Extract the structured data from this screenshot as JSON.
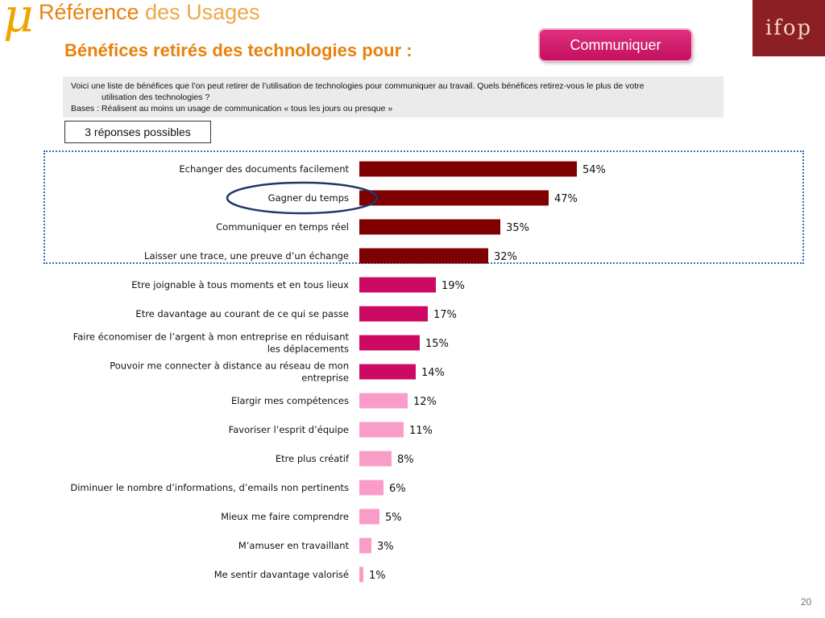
{
  "header": {
    "brand_mu": "μ",
    "brand_bold": "Référence",
    "brand_light": " des Usages",
    "title": "Bénéfices retirés des technologies pour :",
    "topic_button": "Communiquer",
    "logo_text": "ifop"
  },
  "question": {
    "line1": "Voici une liste de bénéfices que l’on peut retirer de l’utilisation de technologies pour communiquer au travail. Quels bénéfices retirez-vous le plus de votre",
    "line2": "utilisation des technologies ?",
    "line3": "Bases : Réalisent au moins un usage de communication « tous les jours ou presque »"
  },
  "answers_note": "3 réponses possibles",
  "page_number": "20",
  "colors": {
    "dark": "#7f0000",
    "medium": "#cc0a63",
    "light": "#f99dc8",
    "frame": "#3a6fb5",
    "circle": "#1f3864"
  },
  "chart_data": {
    "type": "bar",
    "orientation": "horizontal",
    "categories": [
      "Echanger des documents facilement",
      "Gagner du temps",
      "Communiquer en temps réel",
      "Laisser une trace, une preuve d’un échange",
      "Etre joignable à tous moments et en tous lieux",
      "Etre davantage au courant de ce qui se passe",
      "Faire économiser de l’argent à mon entreprise en réduisant les déplacements",
      "Pouvoir me connecter à distance au réseau de mon entreprise",
      "Elargir mes compétences",
      "Favoriser l’esprit d’équipe",
      "Etre plus créatif",
      "Diminuer le nombre d’informations, d’emails non pertinents",
      "Mieux me faire comprendre",
      "M’amuser en travaillant",
      "Me sentir davantage valorisé"
    ],
    "label_lines": [
      [
        "Echanger des documents facilement"
      ],
      [
        "Gagner du temps"
      ],
      [
        "Communiquer en temps réel"
      ],
      [
        "Laisser une trace, une preuve d’un échange"
      ],
      [
        "Etre joignable à tous moments et en tous lieux"
      ],
      [
        "Etre davantage au courant de ce qui se passe"
      ],
      [
        "Faire économiser de l’argent à mon entreprise en réduisant",
        "les déplacements"
      ],
      [
        "Pouvoir me connecter à distance au réseau de mon",
        "entreprise"
      ],
      [
        "Elargir mes compétences"
      ],
      [
        "Favoriser l’esprit d’équipe"
      ],
      [
        "Etre plus créatif"
      ],
      [
        "Diminuer le nombre d’informations, d’emails non pertinents"
      ],
      [
        "Mieux me faire comprendre"
      ],
      [
        "M’amuser en travaillant"
      ],
      [
        "Me sentir davantage valorisé"
      ]
    ],
    "values": [
      54,
      47,
      35,
      32,
      19,
      17,
      15,
      14,
      12,
      11,
      8,
      6,
      5,
      3,
      1
    ],
    "value_labels": [
      "54%",
      "47%",
      "35%",
      "32%",
      "19%",
      "17%",
      "15%",
      "14%",
      "12%",
      "11%",
      "8%",
      "6%",
      "5%",
      "3%",
      "1%"
    ],
    "tiers": [
      "dark",
      "dark",
      "dark",
      "dark",
      "medium",
      "medium",
      "medium",
      "medium",
      "light",
      "light",
      "light",
      "light",
      "light",
      "light",
      "light"
    ],
    "highlighted_categories": [
      "Echanger des documents facilement",
      "Gagner du temps",
      "Communiquer en temps réel",
      "Laisser une trace, une preuve d’un échange"
    ],
    "circled_category": "Gagner du temps",
    "xlim": [
      0,
      100
    ],
    "unit": "%",
    "grid": false,
    "legend": "none"
  }
}
